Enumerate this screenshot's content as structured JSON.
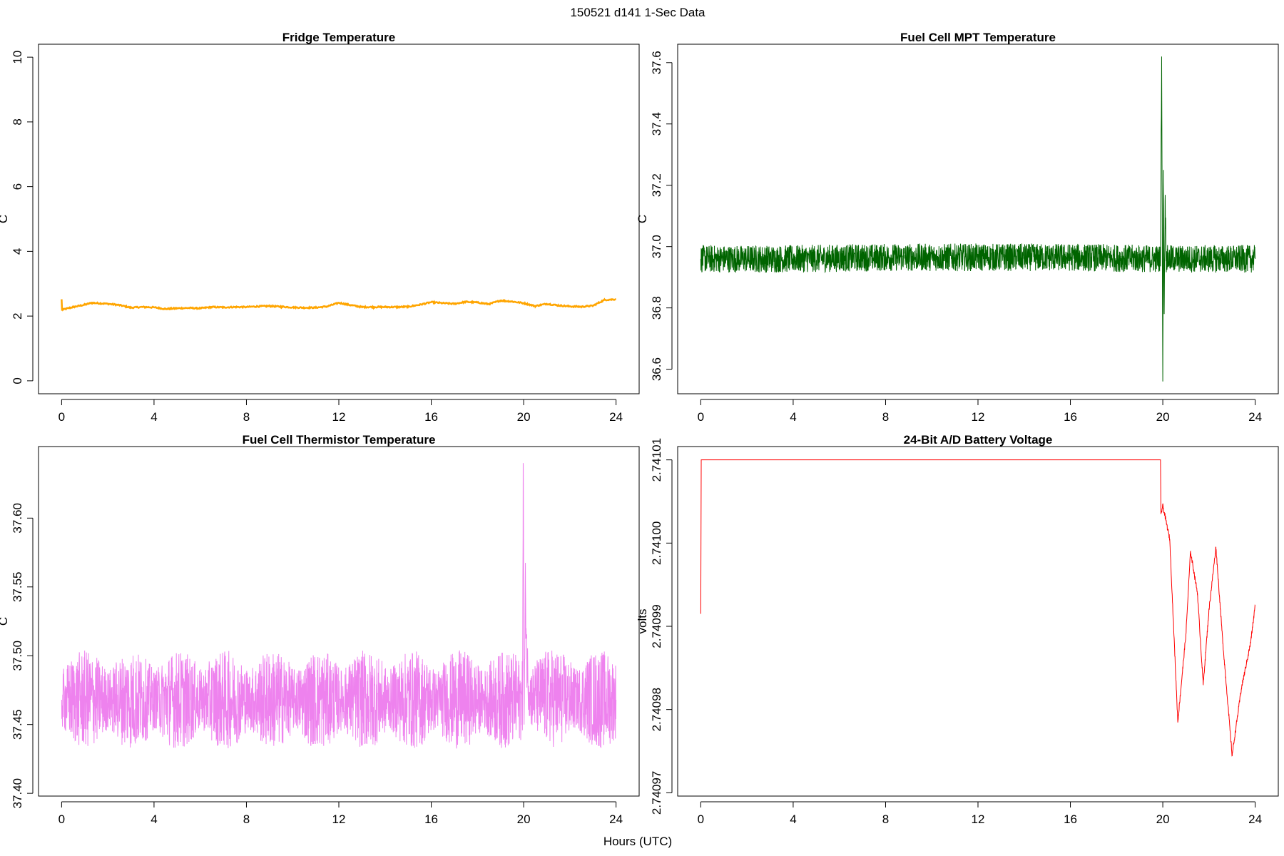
{
  "page": {
    "title": "150521   d141   1-Sec Data",
    "xlabel": "Hours (UTC)"
  },
  "chart_data": [
    {
      "type": "line",
      "title": "Fridge Temperature",
      "xlabel": "Hours (UTC)",
      "ylabel": "C",
      "xlim": [
        -1,
        25
      ],
      "ylim": [
        -0.4,
        10.4
      ],
      "xticks": [
        "0",
        "4",
        "8",
        "12",
        "16",
        "20",
        "24"
      ],
      "yticks": [
        "0",
        "2",
        "4",
        "6",
        "8",
        "10"
      ],
      "color": "#ffa500",
      "noise": 0.02,
      "series": [
        {
          "x": [
            0,
            0.02,
            0.05,
            0.5,
            1,
            1.3,
            2,
            2.5,
            3,
            3.5,
            4,
            4.5,
            5,
            5.5,
            6,
            6.5,
            7,
            7.5,
            8,
            8.5,
            9,
            9.5,
            10,
            10.5,
            11,
            11.5,
            12,
            12.5,
            13,
            13.5,
            14,
            14.5,
            15,
            15.5,
            16,
            16.5,
            17,
            17.5,
            18,
            18.5,
            19,
            19.5,
            20,
            20.5,
            21,
            21.5,
            22,
            22.5,
            23,
            23.5,
            24
          ],
          "values": [
            2.52,
            2.17,
            2.2,
            2.28,
            2.35,
            2.41,
            2.38,
            2.34,
            2.26,
            2.28,
            2.27,
            2.22,
            2.24,
            2.25,
            2.24,
            2.28,
            2.27,
            2.28,
            2.28,
            2.3,
            2.31,
            2.29,
            2.27,
            2.26,
            2.26,
            2.3,
            2.41,
            2.34,
            2.28,
            2.28,
            2.28,
            2.28,
            2.29,
            2.35,
            2.43,
            2.4,
            2.38,
            2.44,
            2.42,
            2.37,
            2.48,
            2.45,
            2.4,
            2.31,
            2.38,
            2.33,
            2.3,
            2.29,
            2.32,
            2.5,
            2.52
          ]
        }
      ]
    },
    {
      "type": "line",
      "title": "Fuel Cell MPT Temperature",
      "xlabel": "Hours (UTC)",
      "ylabel": "C",
      "xlim": [
        -1,
        25
      ],
      "ylim": [
        36.52,
        37.66
      ],
      "xticks": [
        "0",
        "4",
        "8",
        "12",
        "16",
        "20",
        "24"
      ],
      "yticks": [
        "36.6",
        "36.8",
        "37.0",
        "37.2",
        "37.4",
        "37.6"
      ],
      "color": "#006400",
      "noise": 0.045,
      "series": [
        {
          "x": [
            0,
            4,
            8,
            12,
            16,
            19.9,
            19.95,
            20.0,
            20.03,
            20.06,
            20.1,
            20.15,
            20.2,
            21,
            24
          ],
          "values": [
            36.96,
            36.96,
            36.965,
            36.965,
            36.965,
            36.96,
            37.62,
            36.56,
            37.25,
            36.78,
            37.15,
            36.96,
            36.96,
            36.96,
            36.96
          ]
        }
      ]
    },
    {
      "type": "line",
      "title": "Fuel Cell Thermistor Temperature",
      "xlabel": "Hours (UTC)",
      "ylabel": "C",
      "xlim": [
        -1,
        25
      ],
      "ylim": [
        37.398,
        37.652
      ],
      "xticks": [
        "0",
        "4",
        "8",
        "12",
        "16",
        "20",
        "24"
      ],
      "yticks": [
        "37.40",
        "37.45",
        "37.50",
        "37.55",
        "37.60"
      ],
      "color": "#ee82ee",
      "noise": 0.03,
      "series": [
        {
          "x": [
            0,
            4,
            8,
            12,
            16,
            19.95,
            19.98,
            20.02,
            20.08,
            20.15,
            20.3,
            24
          ],
          "values": [
            37.468,
            37.468,
            37.468,
            37.468,
            37.468,
            37.468,
            37.64,
            37.45,
            37.55,
            37.49,
            37.47,
            37.468
          ]
        }
      ]
    },
    {
      "type": "line",
      "title": "24-Bit A/D Battery Voltage",
      "xlabel": "Hours (UTC)",
      "ylabel": "volts",
      "xlim": [
        -1,
        25
      ],
      "ylim": [
        2.7409696,
        2.7410116
      ],
      "xticks": [
        "0",
        "4",
        "8",
        "12",
        "16",
        "20",
        "24"
      ],
      "yticks": [
        "2.74097",
        "2.74098",
        "2.74099",
        "2.74100",
        "2.74101"
      ],
      "color": "#ff0000",
      "noise": 3e-07,
      "series": [
        {
          "x": [
            0,
            0.02,
            19.9,
            19.92,
            20.0,
            20.3,
            20.65,
            21.0,
            21.2,
            21.5,
            21.75,
            22.0,
            22.3,
            22.6,
            23.0,
            23.4,
            23.8,
            24.0
          ],
          "values": [
            2.7409915,
            2.74101,
            2.74101,
            2.7410035,
            2.7410045,
            2.7410005,
            2.7409785,
            2.740989,
            2.740999,
            2.740994,
            2.740983,
            2.740992,
            2.7409995,
            2.740988,
            2.7409745,
            2.7409825,
            2.740988,
            2.7409925
          ]
        }
      ]
    }
  ]
}
